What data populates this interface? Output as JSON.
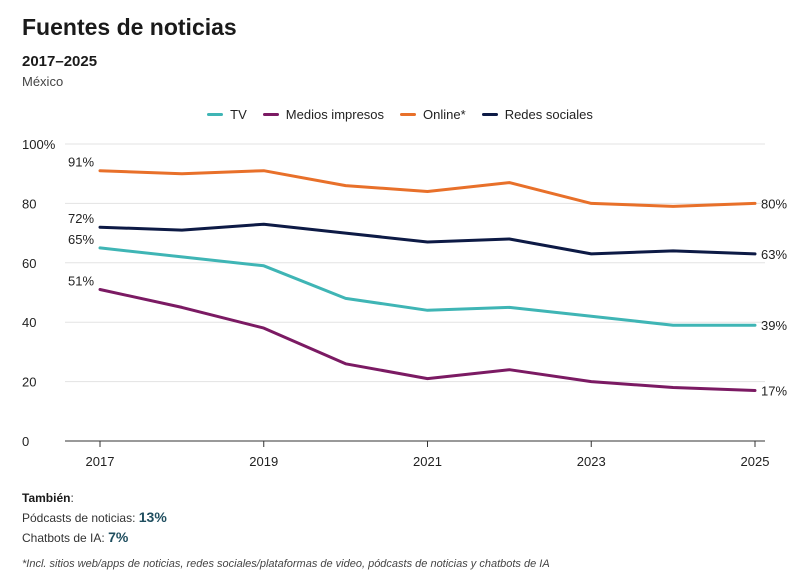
{
  "header": {
    "title": "Fuentes de noticias",
    "period": "2017–2025",
    "region": "México"
  },
  "legend": [
    {
      "label": "TV",
      "color": "#3fb5b5"
    },
    {
      "label": "Medios impresos",
      "color": "#7b1a63"
    },
    {
      "label": "Online*",
      "color": "#e8702a"
    },
    {
      "label": "Redes sociales",
      "color": "#0d1a45"
    }
  ],
  "also": {
    "heading": "También",
    "colon": ":",
    "items": [
      {
        "label": "Pódcasts de noticias:",
        "value": "13%"
      },
      {
        "label": "Chatbots de IA:",
        "value": "7%"
      }
    ]
  },
  "footnote": "*Incl. sitios web/apps de noticias, redes sociales/plataformas de video, pódcasts de noticias y chatbots de IA",
  "chart_data": {
    "type": "line",
    "title": "Fuentes de noticias",
    "subtitle": "2017–2025",
    "x": [
      2017,
      2018,
      2019,
      2020,
      2021,
      2022,
      2023,
      2024,
      2025
    ],
    "xticks": [
      2017,
      2019,
      2021,
      2023,
      2025
    ],
    "xtick_labels": [
      "2017",
      "2019",
      "2021",
      "2023",
      "2025"
    ],
    "yticks": [
      0,
      20,
      40,
      60,
      80,
      100
    ],
    "ytick_labels": [
      "0",
      "20",
      "40",
      "60",
      "80",
      "100%"
    ],
    "ylim": [
      0,
      100
    ],
    "grid": true,
    "legend_position": "top-center",
    "series": [
      {
        "name": "TV",
        "color": "#3fb5b5",
        "values": [
          65,
          62,
          59,
          48,
          44,
          45,
          42,
          39,
          39
        ],
        "start_label": "65%",
        "end_label": "39%"
      },
      {
        "name": "Medios impresos",
        "color": "#7b1a63",
        "values": [
          51,
          45,
          38,
          26,
          21,
          24,
          20,
          18,
          17
        ],
        "start_label": "51%",
        "end_label": "17%"
      },
      {
        "name": "Online*",
        "color": "#e8702a",
        "values": [
          91,
          90,
          91,
          86,
          84,
          87,
          80,
          79,
          80
        ],
        "start_label": "91%",
        "end_label": "80%"
      },
      {
        "name": "Redes sociales",
        "color": "#0d1a45",
        "values": [
          72,
          71,
          73,
          70,
          67,
          68,
          63,
          64,
          63
        ],
        "start_label": "72%",
        "end_label": "63%"
      }
    ]
  }
}
